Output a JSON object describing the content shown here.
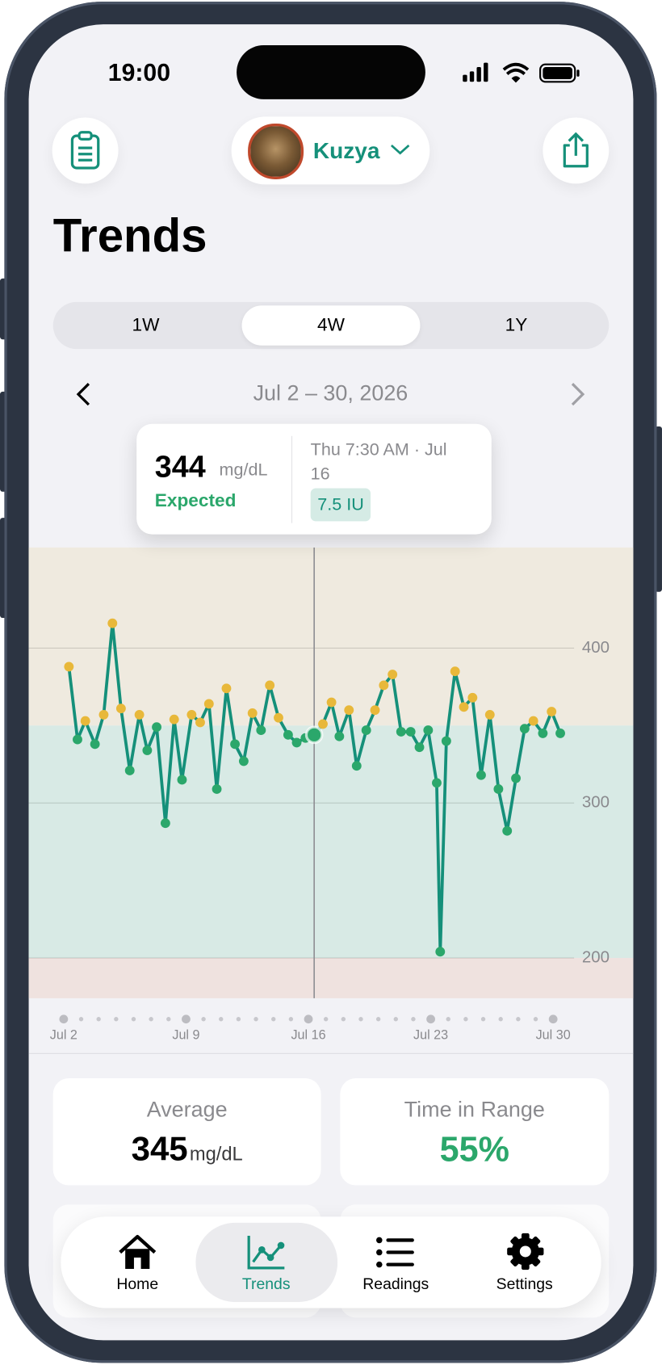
{
  "status_bar": {
    "time": "19:00"
  },
  "header": {
    "profile_name": "Kuzya",
    "title": "Trends"
  },
  "segments": {
    "items": [
      "1W",
      "4W",
      "1Y"
    ],
    "selected": 1
  },
  "date_range": "Jul 2 – 30, 2026",
  "tooltip": {
    "value": 344,
    "unit": "mg/dL",
    "label": "Expected",
    "time": "Thu 7:30 AM · Jul 16",
    "dose": "7.5 IU"
  },
  "chart_data": {
    "type": "line",
    "x": [
      2.3,
      2.79,
      3.24,
      3.79,
      4.29,
      4.79,
      5.28,
      5.78,
      6.33,
      6.78,
      7.32,
      7.82,
      8.32,
      8.77,
      9.32,
      9.81,
      10.31,
      10.76,
      11.31,
      11.8,
      12.3,
      12.8,
      13.29,
      13.79,
      14.29,
      14.84,
      15.33,
      15.83,
      16.33,
      16.83,
      17.32,
      17.77,
      18.32,
      18.76,
      19.31,
      19.81,
      20.31,
      20.81,
      21.3,
      21.85,
      22.35,
      22.85,
      23.34,
      23.54,
      23.89,
      24.39,
      24.89,
      25.39,
      25.88,
      26.38,
      26.87,
      27.37,
      27.87,
      28.37,
      28.87,
      29.41,
      29.91,
      30.41
    ],
    "values": [
      388,
      341,
      353,
      338,
      357,
      416,
      361,
      321,
      357,
      334,
      349,
      287,
      354,
      315,
      357,
      352,
      364,
      309,
      374,
      338,
      327,
      358,
      347,
      376,
      355,
      344,
      339,
      342,
      344,
      351,
      365,
      343,
      360,
      324,
      347,
      360,
      376,
      383,
      346,
      346,
      336,
      347,
      313,
      204,
      340,
      385,
      362,
      368,
      318,
      357,
      309,
      282,
      316,
      348,
      353,
      345,
      359,
      345
    ],
    "color": "#15907a",
    "high_color": "#e8b83a",
    "normal_color": "#2ba76b",
    "selected_index": 28,
    "xlim": [
      0,
      31.2
    ],
    "ylim": [
      174,
      465
    ],
    "xticks": [
      {
        "value": 2,
        "label": "Jul 2"
      },
      {
        "value": 9,
        "label": "Jul 9"
      },
      {
        "value": 16,
        "label": "Jul 16"
      },
      {
        "value": 23,
        "label": "Jul 23"
      },
      {
        "value": 30,
        "label": "Jul 30"
      }
    ],
    "yticks": [
      200,
      300,
      400
    ],
    "grid": true,
    "bands": [
      {
        "from": 350,
        "to": 465,
        "color": "#efeadf"
      },
      {
        "from": 200,
        "to": 350,
        "color": "#d8eae5"
      },
      {
        "from": 174,
        "to": 200,
        "color": "#efe2df"
      }
    ]
  },
  "stats": [
    {
      "label": "Average",
      "value": 345,
      "unit": "mg/dL"
    },
    {
      "label": "Time in Range",
      "value": "55%"
    }
  ],
  "nav": [
    "Home",
    "Trends",
    "Readings",
    "Settings"
  ]
}
